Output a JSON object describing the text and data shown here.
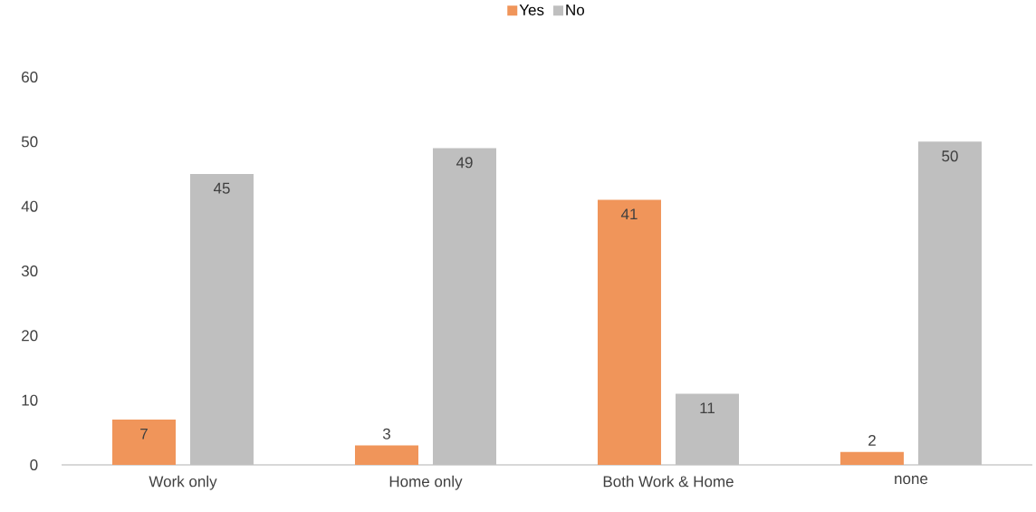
{
  "chart_data": {
    "type": "bar",
    "categories": [
      "Work only",
      "Home only",
      "Both Work & Home",
      "none"
    ],
    "series": [
      {
        "name": "Yes",
        "color": "#f0955a",
        "values": [
          7,
          3,
          41,
          2
        ],
        "value_labels": [
          "7",
          "3",
          "41",
          "2"
        ]
      },
      {
        "name": "No",
        "color": "#bfbfbf",
        "values": [
          45,
          49,
          11,
          50
        ],
        "value_labels": [
          "45",
          "49",
          "11",
          "50"
        ]
      }
    ],
    "ylim": [
      0,
      60
    ],
    "yticks": [
      0,
      10,
      20,
      30,
      40,
      50,
      60
    ],
    "grid": false,
    "legend": "top"
  }
}
